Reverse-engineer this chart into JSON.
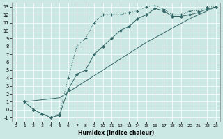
{
  "xlabel": "Humidex (Indice chaleur)",
  "bg_color": "#cce8e4",
  "line_color": "#336666",
  "grid_color": "#ffffff",
  "xlim": [
    -0.5,
    23.5
  ],
  "ylim": [
    -1.5,
    13.5
  ],
  "xticks": [
    0,
    1,
    2,
    3,
    4,
    5,
    6,
    7,
    8,
    9,
    10,
    11,
    12,
    13,
    14,
    15,
    16,
    17,
    18,
    19,
    20,
    21,
    22,
    23
  ],
  "yticks": [
    -1,
    0,
    1,
    2,
    3,
    4,
    5,
    6,
    7,
    8,
    9,
    10,
    11,
    12,
    13
  ],
  "line1_x": [
    1,
    2,
    3,
    4,
    5,
    6,
    7,
    8,
    9,
    10,
    11,
    12,
    13,
    14,
    15,
    16,
    17,
    18,
    19,
    20,
    21,
    22,
    23
  ],
  "line1_y": [
    1,
    0,
    -0.5,
    -1,
    -0.5,
    4,
    8,
    9,
    11,
    12,
    12,
    12,
    12.3,
    12.5,
    13,
    13.2,
    12.7,
    12,
    12,
    12.5,
    12.5,
    13,
    13
  ],
  "line2_x": [
    1,
    2,
    3,
    4,
    5,
    6,
    7,
    8,
    9,
    10,
    11,
    12,
    13,
    14,
    15,
    16,
    17,
    18,
    19,
    20,
    21,
    22,
    23
  ],
  "line2_y": [
    1,
    0,
    -0.5,
    -1,
    -0.7,
    2.5,
    4.5,
    5,
    7,
    8,
    9,
    10,
    10.5,
    11.5,
    12,
    12.8,
    12.5,
    11.8,
    11.8,
    12,
    12.3,
    12.7,
    13
  ],
  "line3_x": [
    1,
    5,
    10,
    15,
    20,
    23
  ],
  "line3_y": [
    1,
    1.5,
    5,
    8.5,
    11.5,
    13
  ]
}
